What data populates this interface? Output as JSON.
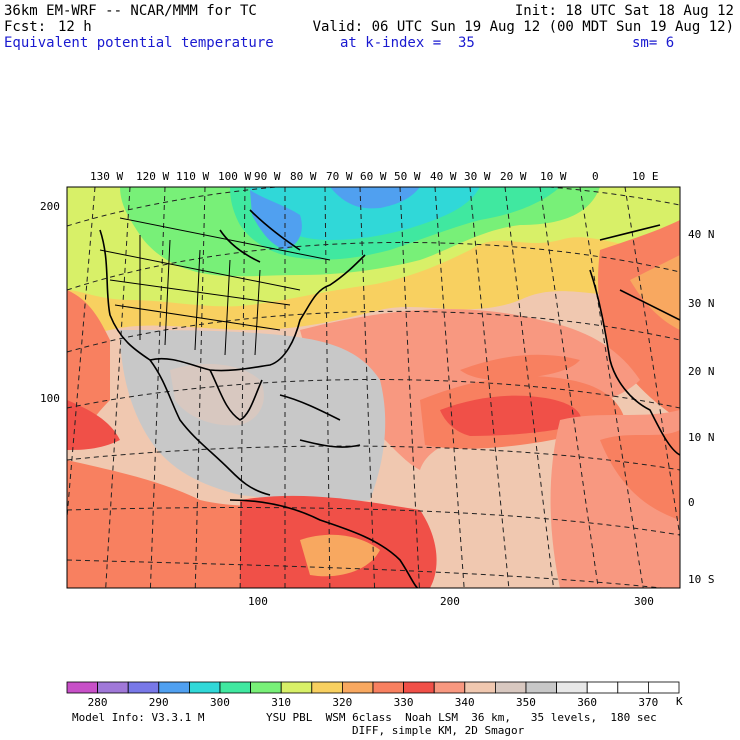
{
  "header": {
    "model_line": "36km EM-WRF -- NCAR/MMM for TC",
    "init_line": "Init: 18 UTC Sat 18 Aug 12",
    "fcst_label": "Fcst:",
    "fcst_value": "12 h",
    "valid_line": "Valid: 06 UTC Sun 19 Aug 12 (00 MDT Sun 19 Aug 12)",
    "field_name": "Equivalent potential temperature",
    "level_text": "at k-index =  35",
    "smoothing_text": "sm= 6"
  },
  "map": {
    "top_longitudes": [
      "130 W",
      "120 W",
      "110 W",
      "100 W",
      "90 W",
      "80 W",
      "70 W",
      "60 W",
      "50 W",
      "40 W",
      "30 W",
      "20 W",
      "10 W",
      "0",
      "10 E"
    ],
    "right_latitudes": [
      "40 N",
      "30 N",
      "20 N",
      "10 N",
      "0",
      "10 S"
    ],
    "left_grid_ticks": [
      "200",
      "100"
    ],
    "bottom_grid_ticks": [
      "100",
      "200",
      "300"
    ]
  },
  "colorbar": {
    "labels": [
      "280",
      "290",
      "300",
      "310",
      "320",
      "330",
      "340",
      "350",
      "360",
      "370"
    ],
    "unit": "K",
    "colors": [
      "#c850c8",
      "#a078d8",
      "#7878e8",
      "#50a0f0",
      "#30d8d8",
      "#40e8a0",
      "#78f078",
      "#d8f068",
      "#f8d060",
      "#f8a860",
      "#f88060",
      "#f05048",
      "#f89880",
      "#f0c8b0",
      "#d8c8c0",
      "#c8c8c8",
      "#e8e8e8",
      "#ffffff",
      "#ffffff",
      "#ffffff"
    ]
  },
  "footer": {
    "model_info": "Model Info: V3.3.1 M",
    "physics_line": "YSU PBL  WSM 6class  Noah LSM  36 km,   35 levels,  180 sec",
    "diff_line": "DIFF, simple KM, 2D Smagor"
  }
}
